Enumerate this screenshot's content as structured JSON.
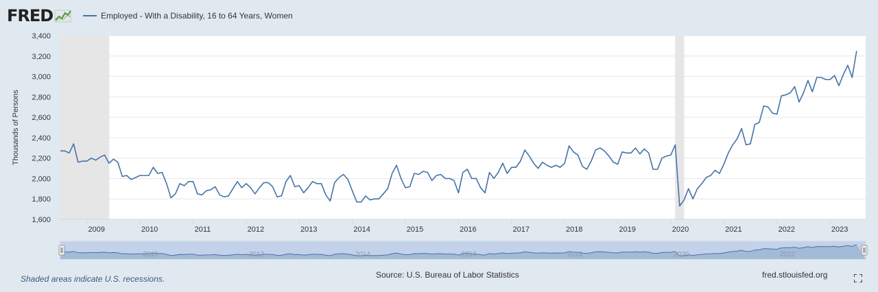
{
  "header": {
    "logo_text": "FRED",
    "logo_icon": "fred-graph-icon",
    "series_label": "Employed - With a Disability, 16 to 64 Years, Women"
  },
  "footer": {
    "recession_note": "Shaded areas indicate U.S. recessions.",
    "source": "Source: U.S. Bureau of Labor Statistics",
    "site": "fred.stlouisfed.org",
    "fullscreen_icon": "fullscreen-icon"
  },
  "colors": {
    "line": "#4572a7",
    "recession": "#e6e6e6",
    "plot_bg": "#ffffff",
    "page_bg": "#e1e9f0",
    "navigator_fill": "#c3d2e8"
  },
  "chart_data": {
    "type": "line",
    "title": "",
    "xlabel": "",
    "ylabel": "Thousands of Persons",
    "ylim": [
      1600,
      3400
    ],
    "yticks": [
      1600,
      1800,
      2000,
      2200,
      2400,
      2600,
      2800,
      3000,
      3200,
      3400
    ],
    "ytick_labels": [
      "1,600",
      "1,800",
      "2,000",
      "2,200",
      "2,400",
      "2,600",
      "2,800",
      "3,000",
      "3,200",
      "3,400"
    ],
    "xlim": [
      2008.5,
      2023.67
    ],
    "xticks": [
      2009,
      2010,
      2011,
      2012,
      2013,
      2014,
      2015,
      2016,
      2017,
      2018,
      2019,
      2020,
      2021,
      2022,
      2023
    ],
    "xtick_labels": [
      "2009",
      "2010",
      "2011",
      "2012",
      "2013",
      "2014",
      "2015",
      "2016",
      "2017",
      "2018",
      "2019",
      "2020",
      "2021",
      "2022",
      "2023"
    ],
    "navigator_labels": [
      "2010",
      "2012",
      "2014",
      "2016",
      "2018",
      "2020",
      "2022"
    ],
    "grid": "horizontal",
    "legend": "top-left",
    "recessions": [
      [
        2008.5,
        2009.42
      ],
      [
        2020.08,
        2020.25
      ]
    ],
    "series": [
      {
        "name": "Employed - With a Disability, 16 to 64 Years, Women",
        "start": 2008.5,
        "step": 0.08333,
        "values": [
          2270,
          2270,
          2250,
          2340,
          2160,
          2170,
          2170,
          2200,
          2180,
          2210,
          2230,
          2150,
          2190,
          2160,
          2020,
          2030,
          1990,
          2010,
          2030,
          2030,
          2030,
          2110,
          2050,
          2060,
          1950,
          1810,
          1850,
          1950,
          1930,
          1970,
          1970,
          1850,
          1840,
          1880,
          1890,
          1920,
          1840,
          1820,
          1830,
          1900,
          1970,
          1910,
          1950,
          1910,
          1850,
          1910,
          1960,
          1960,
          1920,
          1820,
          1830,
          1970,
          2030,
          1920,
          1930,
          1860,
          1910,
          1970,
          1950,
          1950,
          1840,
          1780,
          1960,
          2010,
          2040,
          1990,
          1880,
          1770,
          1770,
          1830,
          1790,
          1800,
          1800,
          1850,
          1900,
          2050,
          2130,
          2000,
          1910,
          1920,
          2050,
          2040,
          2070,
          2060,
          1980,
          2030,
          2040,
          2000,
          2000,
          1980,
          1860,
          2060,
          2090,
          2000,
          2000,
          1910,
          1860,
          2060,
          2000,
          2060,
          2150,
          2050,
          2110,
          2110,
          2170,
          2280,
          2220,
          2150,
          2100,
          2160,
          2130,
          2110,
          2130,
          2110,
          2150,
          2320,
          2260,
          2230,
          2120,
          2090,
          2170,
          2280,
          2300,
          2270,
          2220,
          2160,
          2140,
          2260,
          2250,
          2250,
          2300,
          2240,
          2290,
          2250,
          2090,
          2090,
          2200,
          2220,
          2230,
          2330,
          1730,
          1790,
          1900,
          1800,
          1900,
          1950,
          2010,
          2030,
          2080,
          2050,
          2140,
          2250,
          2330,
          2390,
          2490,
          2330,
          2340,
          2530,
          2550,
          2710,
          2700,
          2640,
          2630,
          2810,
          2820,
          2840,
          2900,
          2750,
          2840,
          2960,
          2850,
          2990,
          2990,
          2970,
          2970,
          3010,
          2910,
          3020,
          3110,
          2990,
          3250
        ]
      }
    ]
  }
}
